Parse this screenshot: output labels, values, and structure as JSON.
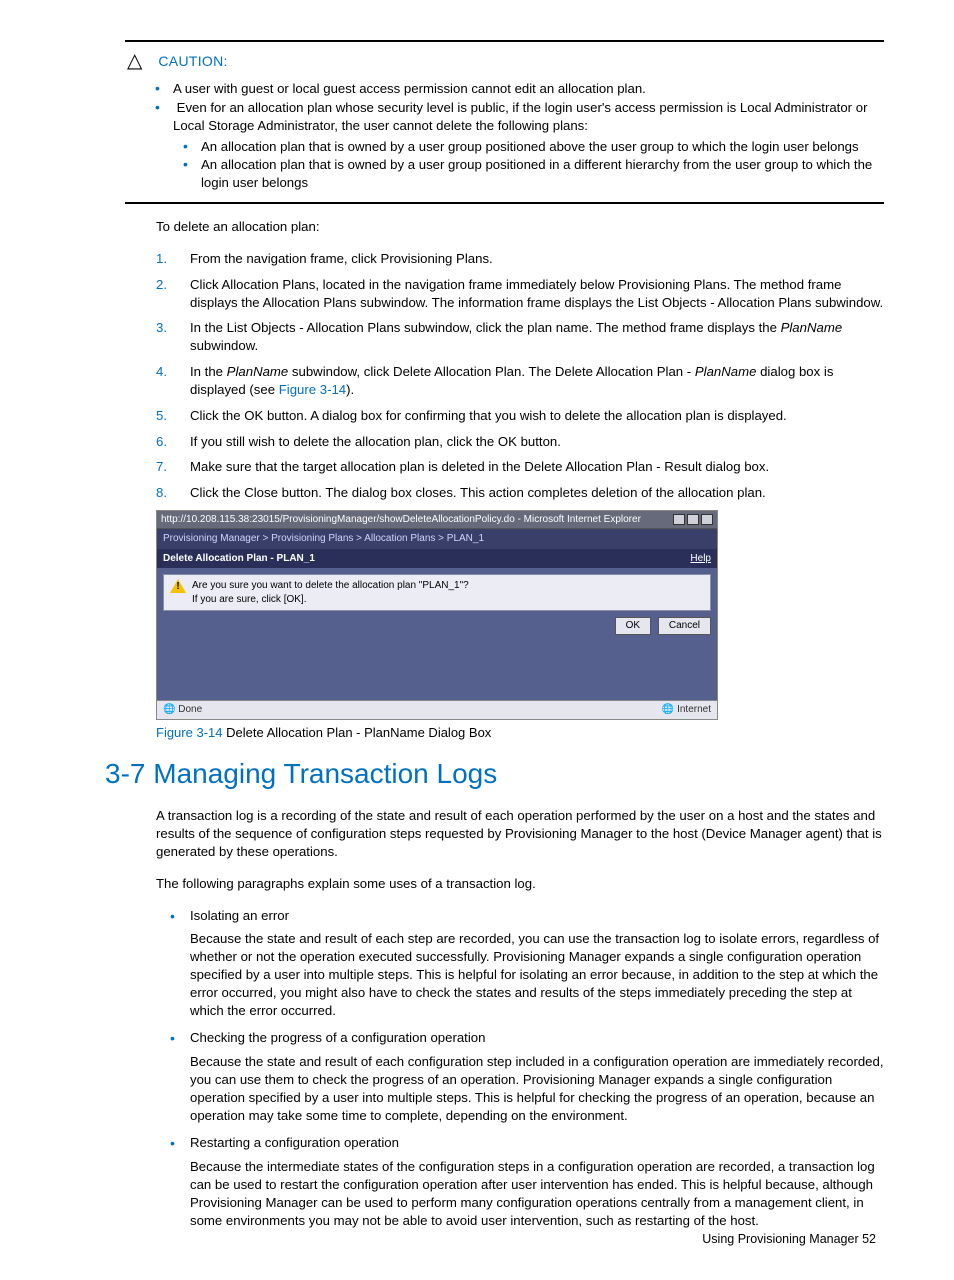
{
  "caution": {
    "label": "CAUTION:",
    "items": [
      "A user with guest or local guest access permission cannot edit an allocation plan.",
      "Even for an allocation plan whose security level is public, if the login user's access permission is Local Administrator or Local Storage Administrator, the user cannot delete the following plans:"
    ],
    "subitems": [
      "An allocation plan that is owned by a user group positioned above the user group to which the login user belongs",
      "An allocation plan that is owned by a user group positioned in a different hierarchy from the user group to which the login user belongs"
    ]
  },
  "intro": "To delete an allocation plan:",
  "steps": {
    "s1": "From the navigation frame, click Provisioning Plans.",
    "s2": "Click Allocation Plans, located in the navigation frame immediately below Provisioning Plans. The method frame displays the Allocation Plans subwindow. The information frame displays the List Objects - Allocation Plans subwindow.",
    "s3a": "In the List Objects - Allocation Plans subwindow, click the plan name. The method frame displays the ",
    "s3_plan": "PlanName",
    "s3b": " subwindow.",
    "s4a": "In the ",
    "s4_plan1": "PlanName",
    "s4b": " subwindow, click Delete Allocation Plan. The Delete Allocation Plan - ",
    "s4_plan2": "PlanName",
    "s4c": " dialog box is displayed (see ",
    "s4_fig": "Figure 3-14",
    "s4d": ").",
    "s5": "Click the OK button. A dialog box for confirming that you wish to delete the allocation plan is displayed.",
    "s6": "If you still wish to delete the allocation plan, click the OK button.",
    "s7": "Make sure that the target allocation plan is deleted in the Delete Allocation Plan - Result dialog box.",
    "s8": "Click the Close button. The dialog box closes. This action completes deletion of the allocation plan."
  },
  "dialog": {
    "url": "http://10.208.115.38:23015/ProvisioningManager/showDeleteAllocationPolicy.do - Microsoft Internet Explorer",
    "breadcrumb": "Provisioning Manager > Provisioning Plans > Allocation Plans > PLAN_1",
    "title": "Delete Allocation Plan - PLAN_1",
    "help": "Help",
    "msg1": "Are you sure you want to delete the allocation plan \"PLAN_1\"?",
    "msg2": "If you are sure, click [OK].",
    "ok": "OK",
    "cancel": "Cancel",
    "done": "Done",
    "zone": "Internet"
  },
  "figure": {
    "label": "Figure 3-14",
    "text": " Delete Allocation Plan - PlanName Dialog Box"
  },
  "section_title": "3-7 Managing Transaction Logs",
  "section_p1": "A transaction log is a recording of the state and result of each operation performed by the user on a host and the states and results of the sequence of configuration steps requested by Provisioning Manager to the host (Device Manager agent) that is generated by these operations.",
  "section_p2": "The following paragraphs explain some uses of a transaction log.",
  "uses": {
    "u1_title": "Isolating an error",
    "u1_body": "Because the state and result of each step are recorded, you can use the transaction log to isolate errors, regardless of whether or not the operation executed successfully. Provisioning Manager expands a single configuration operation specified by a user into multiple steps. This is helpful for isolating an error because, in addition to the step at which the error occurred, you might also have to check the states and results of the steps immediately preceding the step at which the error occurred.",
    "u2_title": "Checking the progress of a configuration operation",
    "u2_body": "Because the state and result of each configuration step included in a configuration operation are immediately recorded, you can use them to check the progress of an operation. Provisioning Manager expands a single configuration operation specified by a user into multiple steps. This is helpful for checking the progress of an operation, because an operation may take some time to complete, depending on the environment.",
    "u3_title": "Restarting a configuration operation",
    "u3_body": "Because the intermediate states of the configuration steps in a configuration operation are recorded, a transaction log can be used to restart the configuration operation after user intervention has ended. This is helpful because, although Provisioning Manager can be used to perform many configuration operations centrally from a management client, in some environments you may not be able to avoid user intervention, such as restarting of the host."
  },
  "footer": "Using Provisioning Manager  52"
}
